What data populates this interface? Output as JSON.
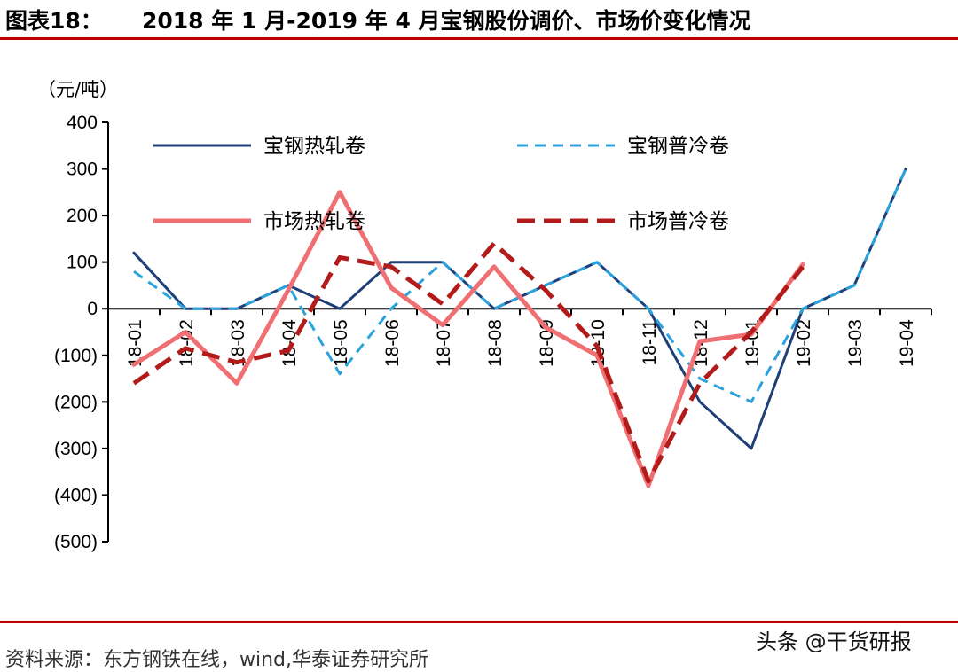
{
  "header": {
    "figure_label": "图表18：",
    "title": "2018 年 1 月-2019 年 4 月宝钢股份调价、市场价变化情况",
    "rule_color": "#c00000"
  },
  "footer": {
    "source": "资料来源：东方钢铁在线，wind,华泰证券研究所",
    "watermark": "头条 @干货研报"
  },
  "chart_data": {
    "type": "line",
    "unit_label": "（元/吨）",
    "categories": [
      "18-01",
      "18-02",
      "18-03",
      "18-04",
      "18-05",
      "18-06",
      "18-07",
      "18-08",
      "18-09",
      "18-10",
      "18-11",
      "18-12",
      "19-01",
      "19-02",
      "19-03",
      "19-04"
    ],
    "ylim": [
      -500,
      400
    ],
    "yticks": [
      400,
      300,
      200,
      100,
      0,
      -100,
      -200,
      -300,
      -400,
      -500
    ],
    "ytick_labels": [
      "400",
      "300",
      "200",
      "100",
      "0",
      "(100)",
      "(200)",
      "(300)",
      "(400)",
      "(500)"
    ],
    "grid": false,
    "legend_position": "top",
    "series": [
      {
        "name": "宝钢热轧卷",
        "color": "#1f3f78",
        "dash": "solid",
        "width": 3,
        "values": [
          120,
          0,
          0,
          50,
          0,
          100,
          100,
          0,
          50,
          100,
          0,
          -200,
          -300,
          0,
          50,
          300
        ]
      },
      {
        "name": "宝钢普冷卷",
        "color": "#2aa3dc",
        "dash": "dashed",
        "width": 3,
        "values": [
          80,
          0,
          0,
          50,
          -140,
          0,
          100,
          0,
          50,
          100,
          0,
          -150,
          -200,
          0,
          50,
          300
        ]
      },
      {
        "name": "市场热轧卷",
        "color": "#ef6f73",
        "dash": "solid",
        "width": 5,
        "values": [
          -120,
          -50,
          -160,
          40,
          250,
          45,
          -35,
          90,
          -40,
          -100,
          -380,
          -70,
          -55,
          95,
          null,
          null
        ]
      },
      {
        "name": "市场普冷卷",
        "color": "#b31b1b",
        "dash": "dashed",
        "width": 5,
        "values": [
          -160,
          -85,
          -115,
          -90,
          110,
          90,
          10,
          140,
          40,
          -80,
          -370,
          -160,
          -50,
          90,
          null,
          null
        ]
      }
    ]
  }
}
